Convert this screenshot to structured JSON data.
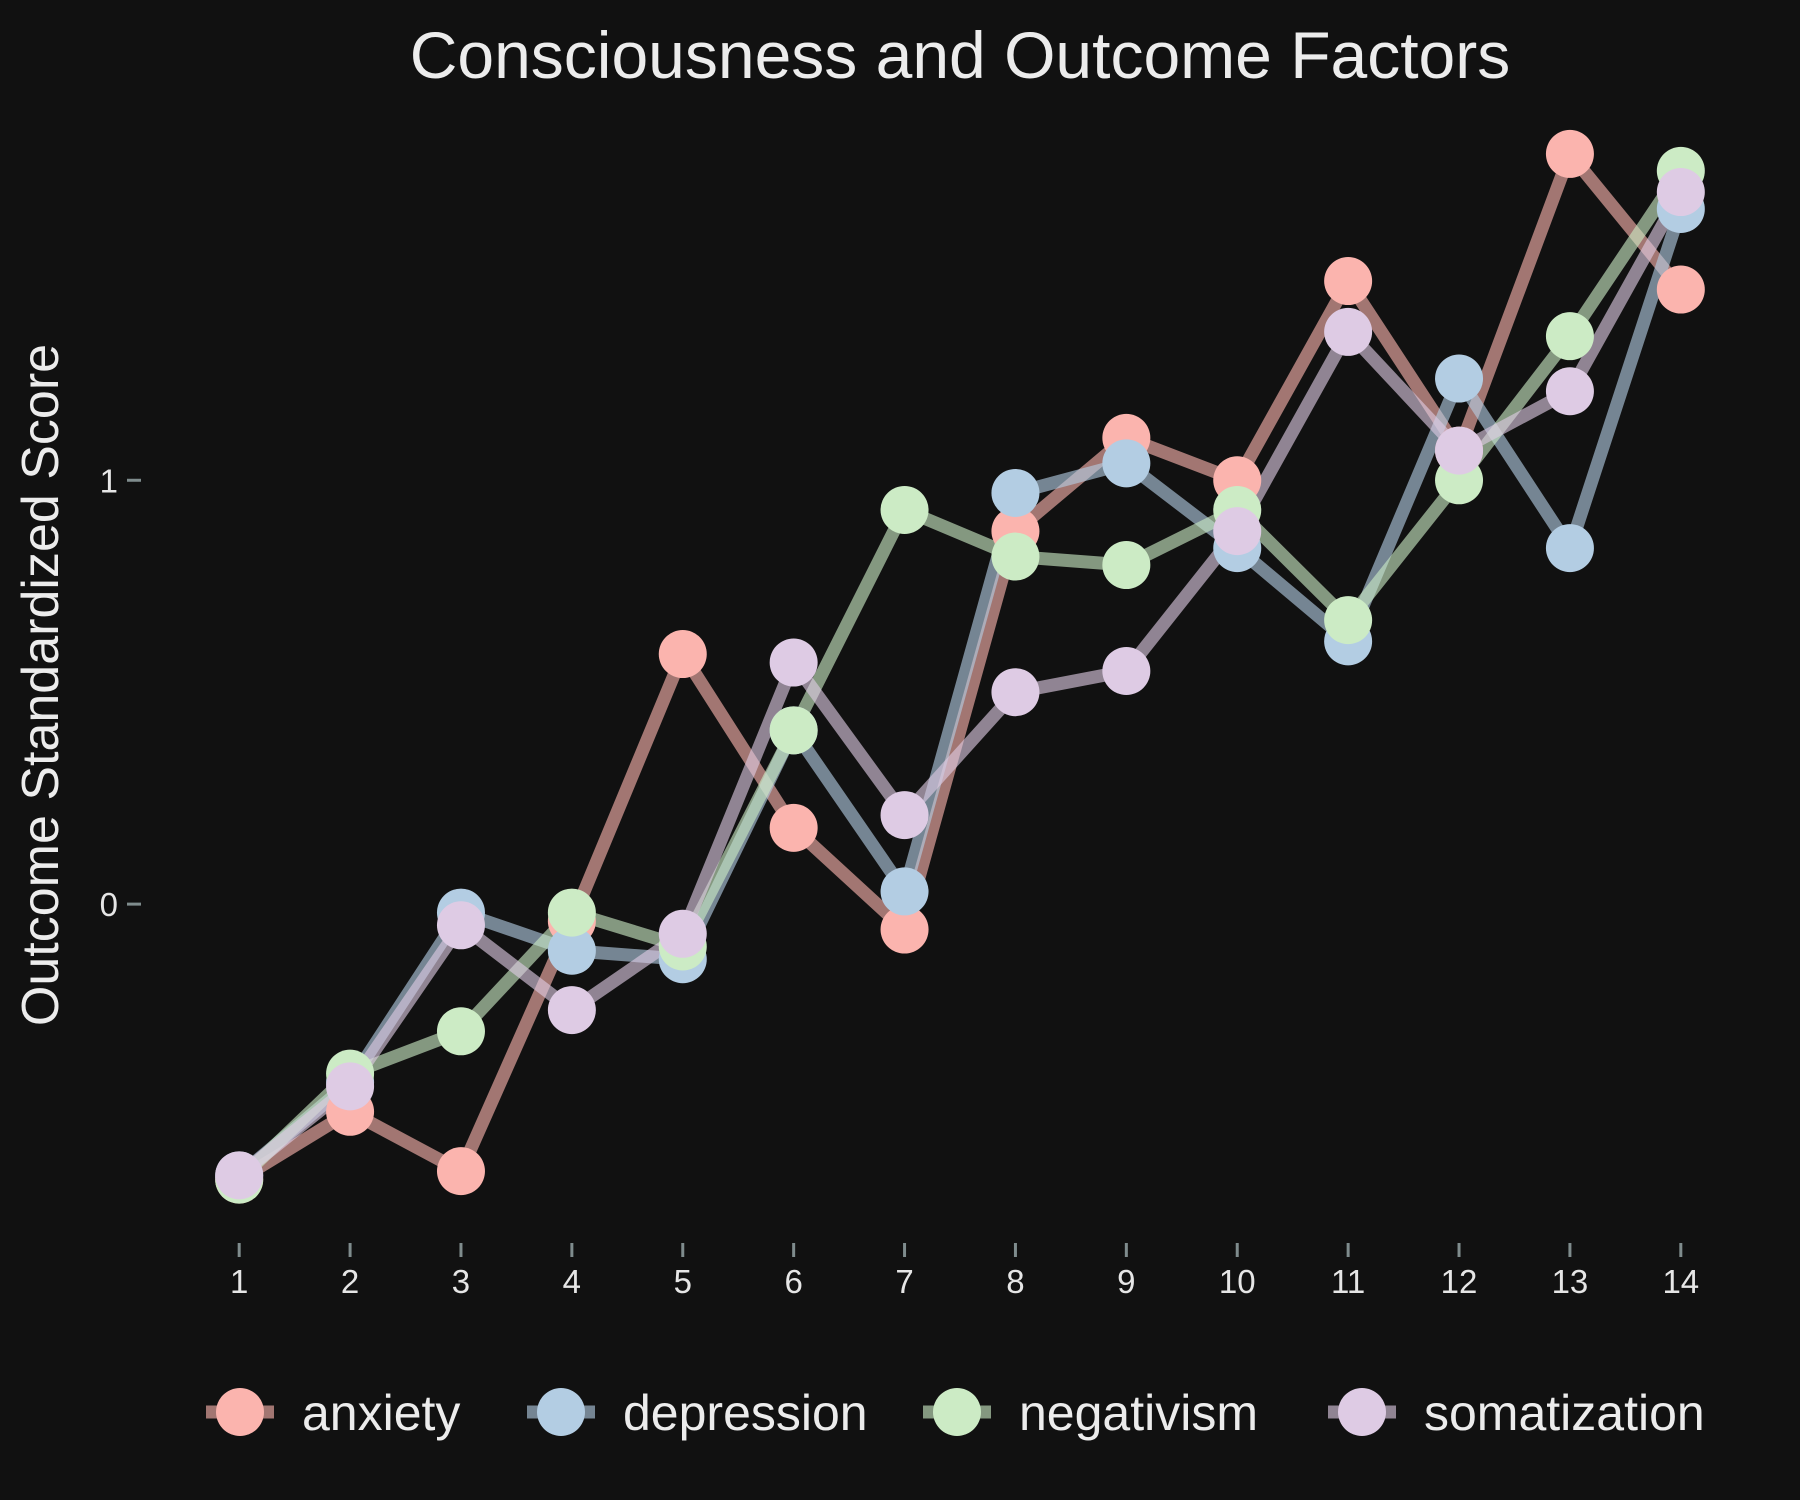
{
  "chart_data": {
    "type": "line",
    "title": "Consciousness and Outcome Factors",
    "xlabel": "",
    "ylabel": "Outcome Standardized Score",
    "x": [
      1,
      2,
      3,
      4,
      5,
      6,
      7,
      8,
      9,
      10,
      11,
      12,
      13,
      14
    ],
    "xlim": [
      0.8,
      14.2
    ],
    "ylim": [
      -0.75,
      1.85
    ],
    "y_ticks": [
      0,
      1
    ],
    "grid": false,
    "legend_position": "bottom",
    "series": [
      {
        "name": "anxiety",
        "color": "#fbb4ae",
        "values": [
          -0.65,
          -0.49,
          -0.63,
          -0.04,
          0.59,
          0.18,
          -0.06,
          0.88,
          1.1,
          1.0,
          1.47,
          1.07,
          1.77,
          1.45
        ]
      },
      {
        "name": "depression",
        "color": "#b3cde3",
        "values": [
          -0.64,
          -0.42,
          -0.02,
          -0.11,
          -0.13,
          0.41,
          0.03,
          0.97,
          1.04,
          0.84,
          0.62,
          1.24,
          0.84,
          1.64
        ]
      },
      {
        "name": "negativism",
        "color": "#ccebc5",
        "values": [
          -0.65,
          -0.4,
          -0.3,
          -0.02,
          -0.1,
          0.41,
          0.93,
          0.82,
          0.8,
          0.93,
          0.67,
          1.0,
          1.34,
          1.73
        ]
      },
      {
        "name": "somatization",
        "color": "#decbe4",
        "values": [
          -0.64,
          -0.43,
          -0.05,
          -0.25,
          -0.07,
          0.57,
          0.21,
          0.5,
          0.55,
          0.88,
          1.35,
          1.07,
          1.21,
          1.68
        ]
      }
    ]
  },
  "axes_color": "#7f8c8d"
}
